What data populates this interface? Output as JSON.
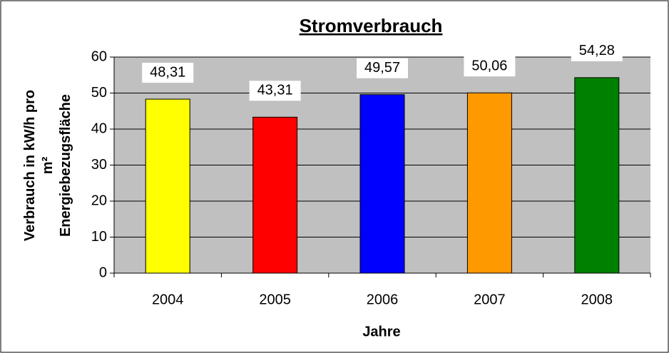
{
  "chart_data": {
    "type": "bar",
    "title": "Stromverbrauch",
    "xlabel": "Jahre",
    "ylabel": [
      "Verbrauch in kW/h pro",
      "m²",
      "Energiebezugsfläche"
    ],
    "categories": [
      "2004",
      "2005",
      "2006",
      "2007",
      "2008"
    ],
    "values": [
      48.31,
      43.31,
      49.57,
      50.06,
      54.28
    ],
    "value_labels": [
      "48,31",
      "43,31",
      "49,57",
      "50,06",
      "54,28"
    ],
    "colors": [
      "#ffff00",
      "#ff0000",
      "#0000ff",
      "#ff9900",
      "#008000"
    ],
    "ylim": [
      0,
      60
    ],
    "yticks": [
      0,
      10,
      20,
      30,
      40,
      50,
      60
    ],
    "grid": true
  }
}
